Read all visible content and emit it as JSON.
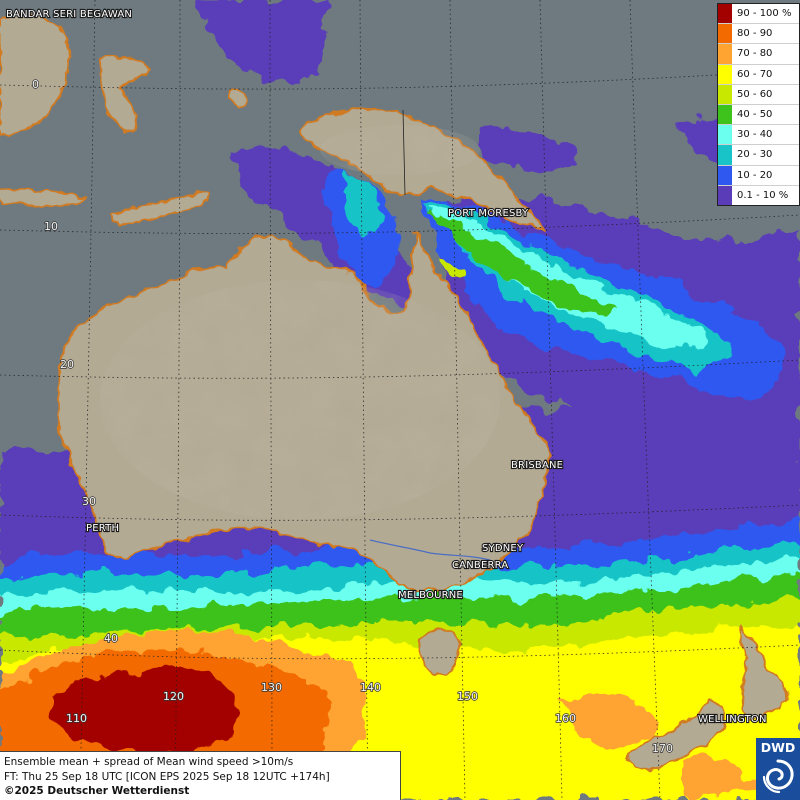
{
  "map": {
    "cities": [
      {
        "id": "bandar",
        "name": "BANDAR SERI BEGAWAN"
      },
      {
        "id": "port-moresby",
        "name": "PORT MORESBY"
      },
      {
        "id": "brisbane",
        "name": "BRISBANE"
      },
      {
        "id": "perth",
        "name": "PERTH"
      },
      {
        "id": "sydney",
        "name": "SYDNEY"
      },
      {
        "id": "canberra",
        "name": "CANBERRA"
      },
      {
        "id": "melbourne",
        "name": "MELBOURNE"
      },
      {
        "id": "wellington",
        "name": "WELLINGTON"
      }
    ],
    "latitude_labels": [
      "0",
      "10",
      "20",
      "30",
      "40"
    ],
    "longitude_labels": [
      "110",
      "120",
      "130",
      "140",
      "150",
      "160",
      "170"
    ]
  },
  "legend": {
    "title": "",
    "classes": [
      {
        "label": "90 - 100 %",
        "color": "#a30000"
      },
      {
        "label": "80 - 90",
        "color": "#f26a00"
      },
      {
        "label": "70 - 80",
        "color": "#ffa430"
      },
      {
        "label": "60 - 70",
        "color": "#ffff00"
      },
      {
        "label": "50 - 60",
        "color": "#c8e800"
      },
      {
        "label": "40 - 50",
        "color": "#3ec21c"
      },
      {
        "label": "30 - 40",
        "color": "#6affee"
      },
      {
        "label": "20 - 30",
        "color": "#19c4c8"
      },
      {
        "label": "10 - 20",
        "color": "#2f58f0"
      },
      {
        "label": "0.1 - 10 %",
        "color": "#5a3cb8"
      }
    ]
  },
  "caption": {
    "line1": "Ensemble mean + spread of Mean wind speed >10m/s",
    "line2": "FT: Thu 25 Sep 18 UTC [ICON EPS 2025 Sep 18 12UTC +174h]",
    "line3": "©2025 Deutscher Wetterdienst"
  },
  "logo": {
    "text": "DWD"
  },
  "colors": {
    "ocean": "#6e7a80",
    "land": "#b3aa94",
    "coast": "#d07a22"
  }
}
